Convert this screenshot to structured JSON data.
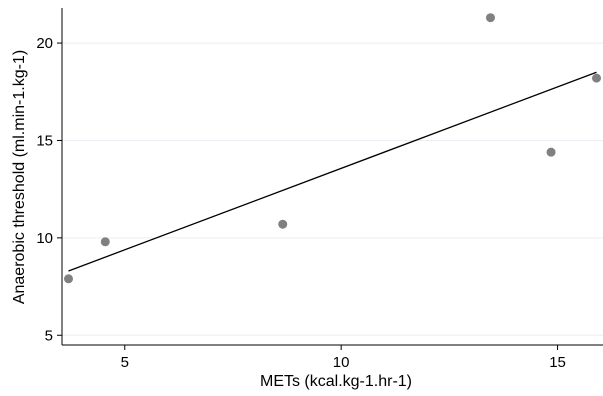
{
  "chart_data": {
    "type": "scatter",
    "title": "",
    "xlabel": "METs (kcal.kg-1.hr-1)",
    "ylabel": "Anaerobic threshold (ml.min-1.kg-1)",
    "xlim": [
      3.55,
      16.05
    ],
    "ylim": [
      4.5,
      21.8
    ],
    "xticks": [
      5,
      10,
      15
    ],
    "yticks": [
      5,
      10,
      15,
      20
    ],
    "grid": "horizontal",
    "legend": "none",
    "series": [
      {
        "x": [
          3.7,
          4.55,
          8.65,
          13.45,
          14.85,
          15.9
        ],
        "y": [
          7.9,
          9.8,
          10.7,
          21.3,
          14.4,
          18.2
        ],
        "color": "#808080"
      }
    ],
    "fit_line": {
      "x": [
        3.7,
        15.9
      ],
      "y": [
        8.3,
        18.5
      ],
      "color": "#000000"
    }
  }
}
